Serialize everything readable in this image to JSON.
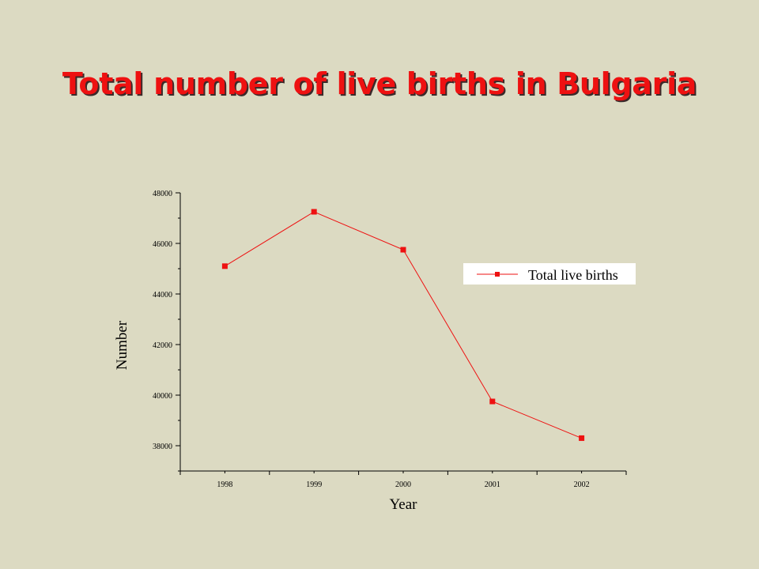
{
  "slide": {
    "title": "Total number of live births in Bulgaria"
  },
  "chart_data": {
    "type": "line",
    "title": "Total number of live births in Bulgaria",
    "x": [
      "1998",
      "1999",
      "2000",
      "2001",
      "2002"
    ],
    "series": [
      {
        "name": "Total live births",
        "values": [
          45100,
          47250,
          45750,
          39750,
          38300
        ],
        "color": "#ee1111",
        "marker": "square"
      }
    ],
    "xlabel": "Year",
    "ylabel": "Number",
    "ylim": [
      37000,
      48000
    ],
    "yticks": [
      38000,
      40000,
      42000,
      44000,
      46000,
      48000
    ],
    "ytick_labels": [
      "38000",
      "40000",
      "42000",
      "44000",
      "46000",
      "48000"
    ],
    "grid": false,
    "legend_position": "right"
  },
  "colors": {
    "background": "#dcdac2",
    "title": "#ee1111",
    "series": "#ee1111",
    "axes": "#000000"
  }
}
